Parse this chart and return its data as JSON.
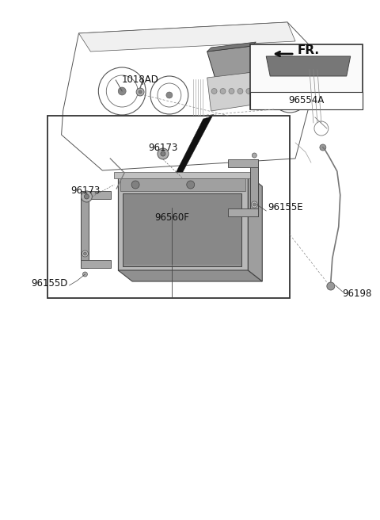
{
  "background_color": "#ffffff",
  "fig_width": 4.8,
  "fig_height": 6.56,
  "dpi": 100,
  "fr_label": "FR.",
  "part_96560F": "96560F",
  "part_96198": "96198",
  "part_96155D": "96155D",
  "part_96155E": "96155E",
  "part_96173a": "96173",
  "part_96173b": "96173",
  "part_1018AD": "1018AD",
  "part_96554A": "96554A",
  "lc": "#444444",
  "tc": "#111111",
  "gray1": "#aaaaaa",
  "gray2": "#888888",
  "gray3": "#cccccc",
  "gray4": "#bbbbbb"
}
